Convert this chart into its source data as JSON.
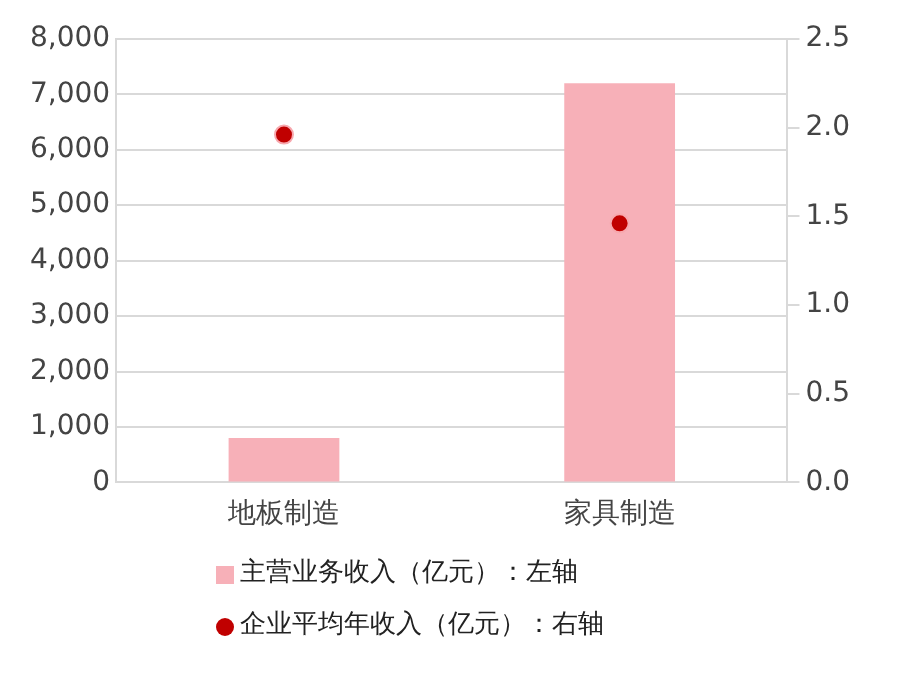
{
  "chart_data": {
    "type": "bar",
    "categories": [
      "地板制造",
      "家具制造"
    ],
    "series": [
      {
        "name": "主营业务收入（亿元）：左轴",
        "color": "#f7b0b8",
        "values": [
          800,
          7200
        ]
      },
      {
        "name": "企业平均年收入（亿元）：右轴",
        "type": "scatter",
        "color": "#c00000",
        "values": [
          1.96,
          1.46
        ],
        "axis": "y2",
        "marker": "circle"
      }
    ],
    "ylim": [
      0,
      8000
    ],
    "yticks": [
      {
        "value": 0,
        "label": "0"
      },
      {
        "value": 1000,
        "label": "1,000"
      },
      {
        "value": 2000,
        "label": "2,000"
      },
      {
        "value": 3000,
        "label": "3,000"
      },
      {
        "value": 4000,
        "label": "4,000"
      },
      {
        "value": 5000,
        "label": "5,000"
      },
      {
        "value": 6000,
        "label": "6,000"
      },
      {
        "value": 7000,
        "label": "7,000"
      },
      {
        "value": 8000,
        "label": "8,000"
      }
    ],
    "y2lim": [
      0,
      2.5
    ],
    "y2ticks": [
      {
        "value": 0,
        "label": "0.0"
      },
      {
        "value": 0.5,
        "label": "0.5"
      },
      {
        "value": 1,
        "label": "1.0"
      },
      {
        "value": 1.5,
        "label": "1.5"
      },
      {
        "value": 2,
        "label": "2.0"
      },
      {
        "value": 2.5,
        "label": "2.5"
      }
    ],
    "grid": "y",
    "legend": "bottom"
  }
}
